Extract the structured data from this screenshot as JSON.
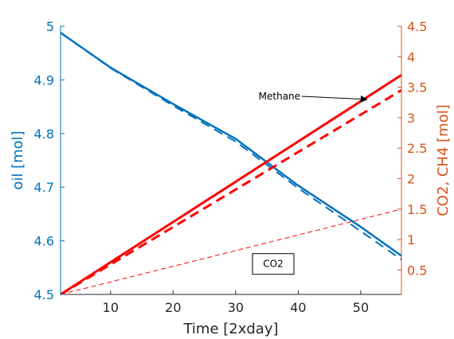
{
  "chart_data": {
    "type": "line",
    "xlabel": "Time [2xday]",
    "ylabel_left": "oil [mol]",
    "ylabel_right": "CO2, CH4 [mol]",
    "xlim": [
      2,
      56.5
    ],
    "ylim_left": [
      4.5,
      5
    ],
    "ylim_right": [
      0.1,
      4.5
    ],
    "xticks": [
      10,
      20,
      30,
      40,
      50
    ],
    "yticks_left": [
      4.5,
      4.6,
      4.7,
      4.8,
      4.9,
      5
    ],
    "yticks_left_labels": [
      "4.5",
      "4.6",
      "4.7",
      "4.8",
      "4.9",
      "5"
    ],
    "yticks_right": [
      0.5,
      1,
      1.5,
      2,
      2.5,
      3,
      3.5,
      4,
      4.5
    ],
    "yticks_right_labels": [
      "0.5",
      "1",
      "1.5",
      "2",
      "2.5",
      "3",
      "3.5",
      "4",
      "4.5"
    ],
    "grid": false,
    "colors": {
      "left_axis": "#0072BD",
      "right_axis": "#D95319",
      "oil": "#0072BD",
      "gas": "#FF0000"
    },
    "series": [
      {
        "axis": "left",
        "style": "solid",
        "color": "#0072BD",
        "width": 2.5,
        "x": [
          2,
          10,
          20,
          30,
          40,
          50,
          56.5
        ],
        "y": [
          4.988,
          4.923,
          4.855,
          4.79,
          4.703,
          4.626,
          4.572
        ]
      },
      {
        "axis": "left",
        "style": "dashed",
        "color": "#0072BD",
        "width": 2,
        "x": [
          2,
          10,
          20,
          30,
          40,
          50,
          56.5
        ],
        "y": [
          4.988,
          4.922,
          4.852,
          4.785,
          4.698,
          4.618,
          4.565
        ]
      },
      {
        "axis": "right",
        "style": "solid",
        "color": "#FF0000",
        "width": 3,
        "x": [
          2,
          56.5
        ],
        "y": [
          0.1,
          3.7
        ]
      },
      {
        "axis": "right",
        "style": "dashed",
        "color": "#FF0000",
        "width": 3,
        "x": [
          2,
          56.5
        ],
        "y": [
          0.1,
          3.45
        ]
      },
      {
        "axis": "right",
        "style": "thin-dashed",
        "color": "#FF0000",
        "width": 1,
        "x": [
          2,
          56.5
        ],
        "y": [
          0.1,
          1.5
        ]
      }
    ],
    "annotations": [
      {
        "text": "Methane",
        "x": 37,
        "y_right": 3.35,
        "arrow_to": {
          "x": 51,
          "y_right": 3.3
        }
      },
      {
        "text": "CO2",
        "x": 36,
        "y_right": 0.6,
        "boxed": true
      }
    ]
  }
}
